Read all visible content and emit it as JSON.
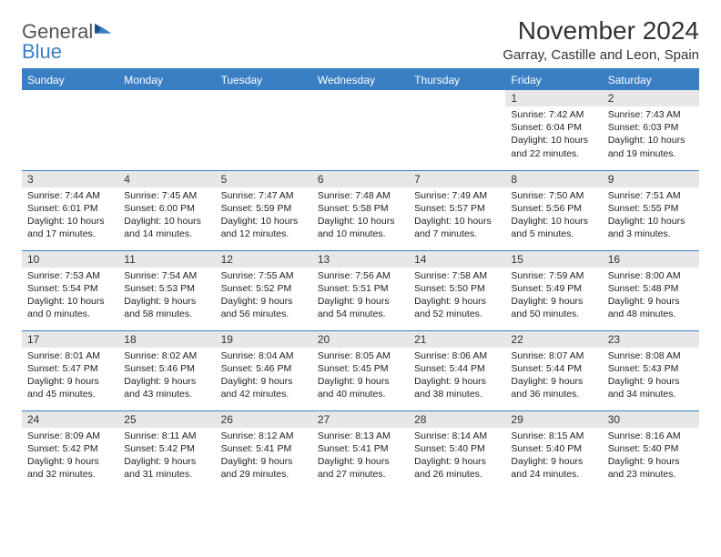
{
  "logo": {
    "text1": "General",
    "text2": "Blue"
  },
  "title": "November 2024",
  "subtitle": "Garray, Castille and Leon, Spain",
  "colors": {
    "header_bg": "#3a7fc4",
    "daynum_bg": "#e7e7e7",
    "rule": "#3a7fc4",
    "text": "#222222",
    "background": "#ffffff"
  },
  "weekdays": [
    "Sunday",
    "Monday",
    "Tuesday",
    "Wednesday",
    "Thursday",
    "Friday",
    "Saturday"
  ],
  "weeks": [
    [
      {
        "n": "",
        "sunrise": "",
        "sunset": "",
        "daylight": ""
      },
      {
        "n": "",
        "sunrise": "",
        "sunset": "",
        "daylight": ""
      },
      {
        "n": "",
        "sunrise": "",
        "sunset": "",
        "daylight": ""
      },
      {
        "n": "",
        "sunrise": "",
        "sunset": "",
        "daylight": ""
      },
      {
        "n": "",
        "sunrise": "",
        "sunset": "",
        "daylight": ""
      },
      {
        "n": "1",
        "sunrise": "Sunrise: 7:42 AM",
        "sunset": "Sunset: 6:04 PM",
        "daylight": "Daylight: 10 hours and 22 minutes."
      },
      {
        "n": "2",
        "sunrise": "Sunrise: 7:43 AM",
        "sunset": "Sunset: 6:03 PM",
        "daylight": "Daylight: 10 hours and 19 minutes."
      }
    ],
    [
      {
        "n": "3",
        "sunrise": "Sunrise: 7:44 AM",
        "sunset": "Sunset: 6:01 PM",
        "daylight": "Daylight: 10 hours and 17 minutes."
      },
      {
        "n": "4",
        "sunrise": "Sunrise: 7:45 AM",
        "sunset": "Sunset: 6:00 PM",
        "daylight": "Daylight: 10 hours and 14 minutes."
      },
      {
        "n": "5",
        "sunrise": "Sunrise: 7:47 AM",
        "sunset": "Sunset: 5:59 PM",
        "daylight": "Daylight: 10 hours and 12 minutes."
      },
      {
        "n": "6",
        "sunrise": "Sunrise: 7:48 AM",
        "sunset": "Sunset: 5:58 PM",
        "daylight": "Daylight: 10 hours and 10 minutes."
      },
      {
        "n": "7",
        "sunrise": "Sunrise: 7:49 AM",
        "sunset": "Sunset: 5:57 PM",
        "daylight": "Daylight: 10 hours and 7 minutes."
      },
      {
        "n": "8",
        "sunrise": "Sunrise: 7:50 AM",
        "sunset": "Sunset: 5:56 PM",
        "daylight": "Daylight: 10 hours and 5 minutes."
      },
      {
        "n": "9",
        "sunrise": "Sunrise: 7:51 AM",
        "sunset": "Sunset: 5:55 PM",
        "daylight": "Daylight: 10 hours and 3 minutes."
      }
    ],
    [
      {
        "n": "10",
        "sunrise": "Sunrise: 7:53 AM",
        "sunset": "Sunset: 5:54 PM",
        "daylight": "Daylight: 10 hours and 0 minutes."
      },
      {
        "n": "11",
        "sunrise": "Sunrise: 7:54 AM",
        "sunset": "Sunset: 5:53 PM",
        "daylight": "Daylight: 9 hours and 58 minutes."
      },
      {
        "n": "12",
        "sunrise": "Sunrise: 7:55 AM",
        "sunset": "Sunset: 5:52 PM",
        "daylight": "Daylight: 9 hours and 56 minutes."
      },
      {
        "n": "13",
        "sunrise": "Sunrise: 7:56 AM",
        "sunset": "Sunset: 5:51 PM",
        "daylight": "Daylight: 9 hours and 54 minutes."
      },
      {
        "n": "14",
        "sunrise": "Sunrise: 7:58 AM",
        "sunset": "Sunset: 5:50 PM",
        "daylight": "Daylight: 9 hours and 52 minutes."
      },
      {
        "n": "15",
        "sunrise": "Sunrise: 7:59 AM",
        "sunset": "Sunset: 5:49 PM",
        "daylight": "Daylight: 9 hours and 50 minutes."
      },
      {
        "n": "16",
        "sunrise": "Sunrise: 8:00 AM",
        "sunset": "Sunset: 5:48 PM",
        "daylight": "Daylight: 9 hours and 48 minutes."
      }
    ],
    [
      {
        "n": "17",
        "sunrise": "Sunrise: 8:01 AM",
        "sunset": "Sunset: 5:47 PM",
        "daylight": "Daylight: 9 hours and 45 minutes."
      },
      {
        "n": "18",
        "sunrise": "Sunrise: 8:02 AM",
        "sunset": "Sunset: 5:46 PM",
        "daylight": "Daylight: 9 hours and 43 minutes."
      },
      {
        "n": "19",
        "sunrise": "Sunrise: 8:04 AM",
        "sunset": "Sunset: 5:46 PM",
        "daylight": "Daylight: 9 hours and 42 minutes."
      },
      {
        "n": "20",
        "sunrise": "Sunrise: 8:05 AM",
        "sunset": "Sunset: 5:45 PM",
        "daylight": "Daylight: 9 hours and 40 minutes."
      },
      {
        "n": "21",
        "sunrise": "Sunrise: 8:06 AM",
        "sunset": "Sunset: 5:44 PM",
        "daylight": "Daylight: 9 hours and 38 minutes."
      },
      {
        "n": "22",
        "sunrise": "Sunrise: 8:07 AM",
        "sunset": "Sunset: 5:44 PM",
        "daylight": "Daylight: 9 hours and 36 minutes."
      },
      {
        "n": "23",
        "sunrise": "Sunrise: 8:08 AM",
        "sunset": "Sunset: 5:43 PM",
        "daylight": "Daylight: 9 hours and 34 minutes."
      }
    ],
    [
      {
        "n": "24",
        "sunrise": "Sunrise: 8:09 AM",
        "sunset": "Sunset: 5:42 PM",
        "daylight": "Daylight: 9 hours and 32 minutes."
      },
      {
        "n": "25",
        "sunrise": "Sunrise: 8:11 AM",
        "sunset": "Sunset: 5:42 PM",
        "daylight": "Daylight: 9 hours and 31 minutes."
      },
      {
        "n": "26",
        "sunrise": "Sunrise: 8:12 AM",
        "sunset": "Sunset: 5:41 PM",
        "daylight": "Daylight: 9 hours and 29 minutes."
      },
      {
        "n": "27",
        "sunrise": "Sunrise: 8:13 AM",
        "sunset": "Sunset: 5:41 PM",
        "daylight": "Daylight: 9 hours and 27 minutes."
      },
      {
        "n": "28",
        "sunrise": "Sunrise: 8:14 AM",
        "sunset": "Sunset: 5:40 PM",
        "daylight": "Daylight: 9 hours and 26 minutes."
      },
      {
        "n": "29",
        "sunrise": "Sunrise: 8:15 AM",
        "sunset": "Sunset: 5:40 PM",
        "daylight": "Daylight: 9 hours and 24 minutes."
      },
      {
        "n": "30",
        "sunrise": "Sunrise: 8:16 AM",
        "sunset": "Sunset: 5:40 PM",
        "daylight": "Daylight: 9 hours and 23 minutes."
      }
    ]
  ]
}
